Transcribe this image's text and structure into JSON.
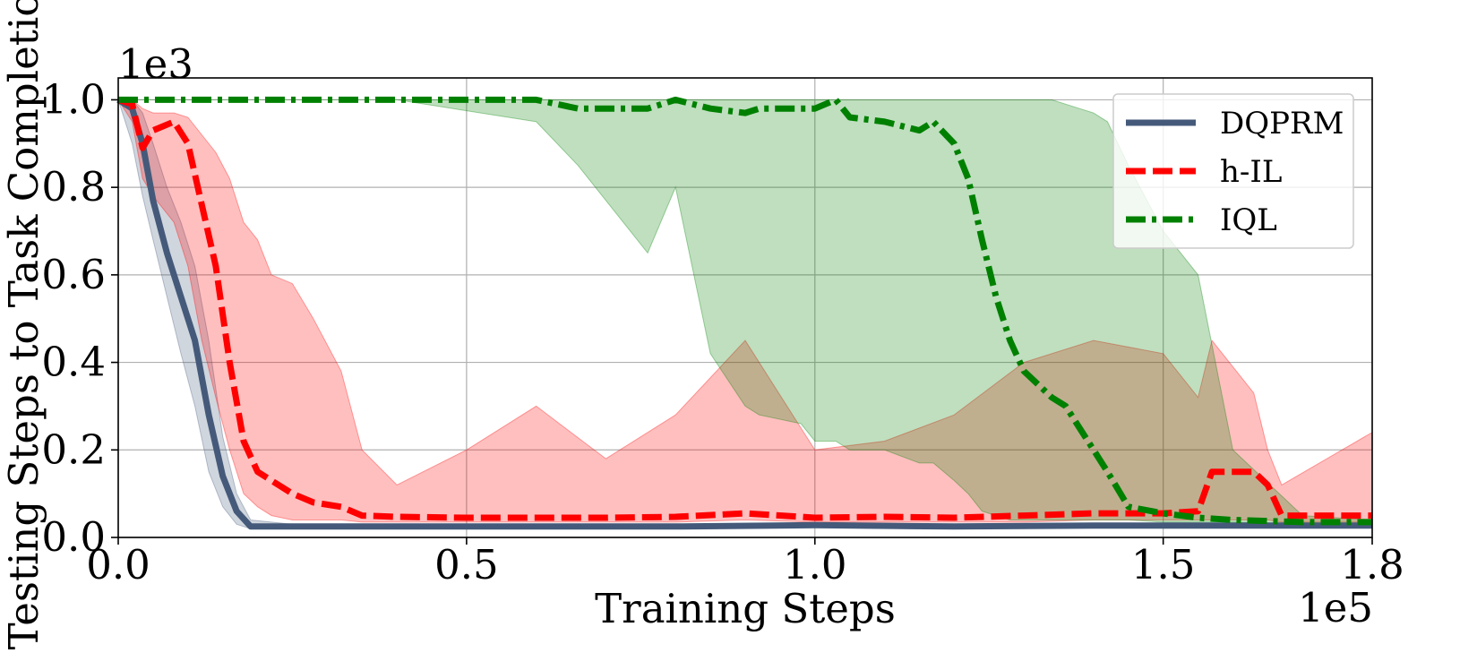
{
  "chart_data": {
    "type": "line",
    "title": "",
    "xlabel": "Training Steps",
    "ylabel": "Testing Steps to Task Completion",
    "x_scale_label": "1e5",
    "y_scale_label": "1e3",
    "xlim": [
      0.0,
      1.8
    ],
    "ylim": [
      0.0,
      1.05
    ],
    "xticks": [
      0.0,
      0.5,
      1.0,
      1.5,
      1.8
    ],
    "xtick_labels": [
      "0.0",
      "0.5",
      "1.0",
      "1.5",
      "1.8"
    ],
    "yticks": [
      0.0,
      0.2,
      0.4,
      0.6,
      0.8,
      1.0
    ],
    "ytick_labels": [
      "0.0",
      "0.2",
      "0.4",
      "0.6",
      "0.8",
      "1.0"
    ],
    "grid": true,
    "legend_position": "top-right",
    "series": [
      {
        "name": "DQPRM",
        "color": "#455a7a",
        "band_color": "#455a7a",
        "band_opacity": 0.25,
        "linestyle": "solid",
        "x": [
          0.0,
          0.02,
          0.035,
          0.05,
          0.07,
          0.09,
          0.11,
          0.13,
          0.15,
          0.17,
          0.19,
          0.25,
          0.4,
          0.6,
          0.8,
          1.0,
          1.2,
          1.4,
          1.6,
          1.8
        ],
        "y": [
          1.0,
          0.98,
          0.9,
          0.77,
          0.65,
          0.55,
          0.45,
          0.28,
          0.14,
          0.06,
          0.025,
          0.025,
          0.025,
          0.025,
          0.025,
          0.028,
          0.025,
          0.027,
          0.027,
          0.027
        ],
        "upper": [
          1.0,
          1.0,
          0.97,
          0.9,
          0.8,
          0.72,
          0.62,
          0.45,
          0.23,
          0.1,
          0.04,
          0.03,
          0.03,
          0.03,
          0.03,
          0.032,
          0.03,
          0.03,
          0.03,
          0.03
        ],
        "lower": [
          1.0,
          0.9,
          0.78,
          0.68,
          0.55,
          0.42,
          0.3,
          0.15,
          0.07,
          0.03,
          0.02,
          0.02,
          0.02,
          0.02,
          0.02,
          0.022,
          0.02,
          0.022,
          0.022,
          0.022
        ]
      },
      {
        "name": "h-IL",
        "color": "#ff0000",
        "band_color": "#ff0000",
        "band_opacity": 0.25,
        "linestyle": "dashed",
        "x": [
          0.0,
          0.02,
          0.035,
          0.05,
          0.08,
          0.1,
          0.12,
          0.14,
          0.16,
          0.18,
          0.2,
          0.22,
          0.25,
          0.28,
          0.32,
          0.35,
          0.4,
          0.5,
          0.6,
          0.7,
          0.8,
          0.9,
          1.0,
          1.1,
          1.2,
          1.3,
          1.4,
          1.5,
          1.55,
          1.57,
          1.63,
          1.65,
          1.67,
          1.8
        ],
        "y": [
          1.0,
          0.99,
          0.89,
          0.93,
          0.95,
          0.9,
          0.76,
          0.62,
          0.4,
          0.22,
          0.15,
          0.13,
          0.1,
          0.08,
          0.07,
          0.05,
          0.047,
          0.045,
          0.045,
          0.045,
          0.047,
          0.055,
          0.045,
          0.047,
          0.045,
          0.05,
          0.055,
          0.055,
          0.06,
          0.15,
          0.15,
          0.12,
          0.05,
          0.05
        ],
        "upper": [
          1.0,
          1.0,
          0.98,
          0.97,
          0.97,
          0.96,
          0.92,
          0.88,
          0.82,
          0.72,
          0.68,
          0.6,
          0.58,
          0.5,
          0.38,
          0.2,
          0.12,
          0.2,
          0.3,
          0.18,
          0.28,
          0.45,
          0.2,
          0.22,
          0.28,
          0.4,
          0.45,
          0.42,
          0.32,
          0.45,
          0.33,
          0.2,
          0.12,
          0.24
        ],
        "lower": [
          1.0,
          0.95,
          0.82,
          0.78,
          0.72,
          0.62,
          0.45,
          0.32,
          0.2,
          0.1,
          0.07,
          0.05,
          0.04,
          0.04,
          0.04,
          0.035,
          0.035,
          0.035,
          0.035,
          0.035,
          0.035,
          0.04,
          0.035,
          0.035,
          0.035,
          0.035,
          0.04,
          0.04,
          0.04,
          0.04,
          0.04,
          0.04,
          0.035,
          0.035
        ]
      },
      {
        "name": "IQL",
        "color": "#008000",
        "band_color": "#008000",
        "band_opacity": 0.25,
        "linestyle": "dashdot",
        "x": [
          0.0,
          0.2,
          0.4,
          0.6,
          0.66,
          0.76,
          0.8,
          0.85,
          0.9,
          0.92,
          0.98,
          1.0,
          1.03,
          1.05,
          1.1,
          1.15,
          1.17,
          1.2,
          1.22,
          1.24,
          1.26,
          1.28,
          1.3,
          1.32,
          1.34,
          1.36,
          1.38,
          1.4,
          1.42,
          1.45,
          1.5,
          1.55,
          1.6,
          1.7,
          1.8
        ],
        "y": [
          1.0,
          1.0,
          1.0,
          1.0,
          0.98,
          0.98,
          1.0,
          0.98,
          0.97,
          0.98,
          0.98,
          0.98,
          1.0,
          0.96,
          0.95,
          0.93,
          0.95,
          0.9,
          0.82,
          0.68,
          0.55,
          0.45,
          0.38,
          0.35,
          0.32,
          0.3,
          0.25,
          0.2,
          0.15,
          0.07,
          0.055,
          0.045,
          0.04,
          0.035,
          0.035
        ],
        "upper": [
          1.0,
          1.0,
          1.0,
          1.0,
          1.0,
          1.0,
          1.0,
          1.0,
          1.0,
          1.0,
          1.0,
          1.0,
          1.0,
          1.0,
          1.0,
          1.0,
          1.0,
          1.0,
          1.0,
          1.0,
          1.0,
          1.0,
          1.0,
          1.0,
          1.0,
          0.99,
          0.98,
          0.97,
          0.95,
          0.85,
          0.7,
          0.6,
          0.2,
          0.05,
          0.04
        ],
        "lower": [
          1.0,
          1.0,
          1.0,
          0.95,
          0.85,
          0.65,
          0.8,
          0.42,
          0.3,
          0.28,
          0.26,
          0.22,
          0.22,
          0.2,
          0.2,
          0.17,
          0.17,
          0.13,
          0.1,
          0.06,
          0.05,
          0.04,
          0.04,
          0.04,
          0.04,
          0.04,
          0.04,
          0.04,
          0.04,
          0.04,
          0.035,
          0.035,
          0.035,
          0.03,
          0.03
        ]
      }
    ]
  }
}
